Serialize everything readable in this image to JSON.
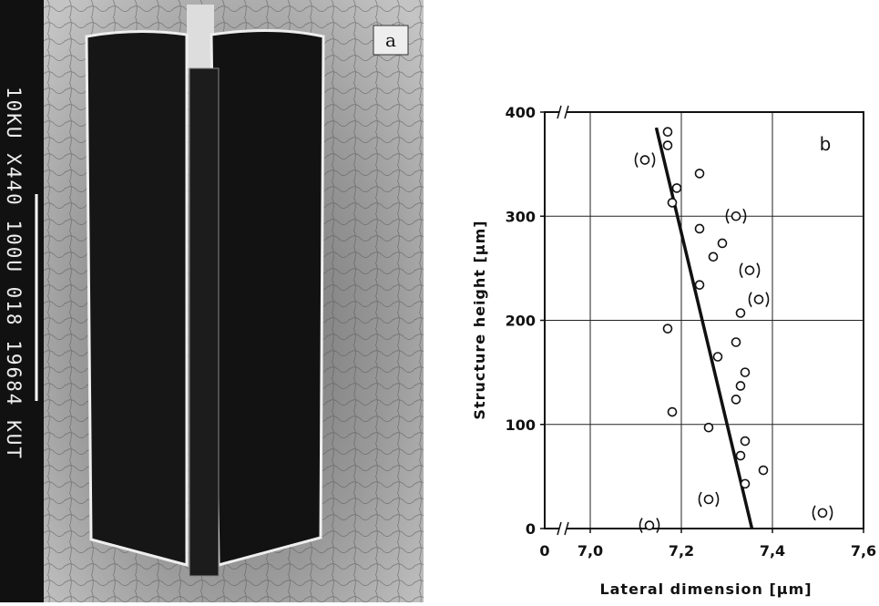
{
  "image_panel": {
    "label": "a",
    "caption": "10KU X440 100U 018 19684 KUT"
  },
  "chart_data": {
    "type": "scatter",
    "panel_label": "b",
    "x_label": "Lateral dimension [µm]",
    "y_label": "Structure height [µm]",
    "xlim": [
      6.9,
      7.6
    ],
    "ylim": [
      0,
      400
    ],
    "xticks": [
      {
        "value": 7.0,
        "label": "7,0"
      },
      {
        "value": 7.2,
        "label": "7,2"
      },
      {
        "value": 7.4,
        "label": "7,4"
      },
      {
        "value": 7.6,
        "label": "7,6"
      }
    ],
    "yticks": [
      0,
      100,
      200,
      300,
      400
    ],
    "x_axis_break": true,
    "x_break_label": "0",
    "grid": true,
    "color": "#111111",
    "series": [
      {
        "marker": "circle",
        "x": [
          7.17,
          7.17,
          7.24,
          7.19,
          7.18,
          7.24,
          7.29,
          7.27,
          7.24,
          7.33,
          7.17,
          7.32,
          7.28,
          7.34,
          7.33,
          7.32,
          7.18,
          7.26,
          7.34,
          7.33,
          7.38,
          7.34
        ],
        "y": [
          381,
          368,
          341,
          327,
          313,
          288,
          274,
          261,
          234,
          207,
          192,
          179,
          165,
          150,
          137,
          124,
          112,
          97,
          84,
          70,
          56,
          43
        ]
      },
      {
        "marker": "bracketed-circle",
        "x": [
          7.12,
          7.32,
          7.35,
          7.37,
          7.26,
          7.51,
          7.13
        ],
        "y": [
          354,
          300,
          248,
          220,
          28,
          15,
          3
        ]
      }
    ],
    "fit_line": {
      "x": [
        7.145,
        7.355
      ],
      "y": [
        385,
        0
      ]
    }
  }
}
